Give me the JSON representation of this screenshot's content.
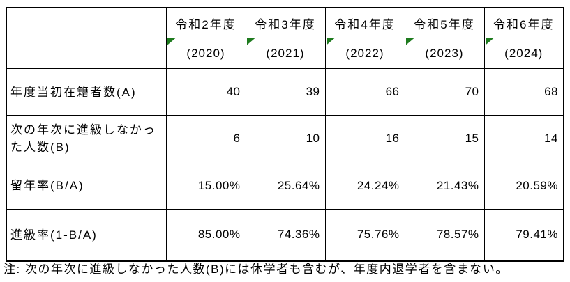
{
  "colors": {
    "error_indicator_green": "#1e7b1e",
    "border": "#000000",
    "text": "#000000",
    "background": "#ffffff"
  },
  "table": {
    "columns": [
      {
        "era": "令和2年度",
        "year": "(2020)"
      },
      {
        "era": "令和3年度",
        "year": "(2021)"
      },
      {
        "era": "令和4年度",
        "year": "(2022)"
      },
      {
        "era": "令和5年度",
        "year": "(2023)"
      },
      {
        "era": "令和6年度",
        "year": "(2024)"
      }
    ],
    "rows": [
      {
        "label": "年度当初在籍者数(A)",
        "values": [
          "40",
          "39",
          "66",
          "70",
          "68"
        ]
      },
      {
        "label": "次の年次に進級しなかった人数(B)",
        "values": [
          "6",
          "10",
          "16",
          "15",
          "14"
        ]
      },
      {
        "label": "留年率(B/A)",
        "values": [
          "15.00%",
          "25.64%",
          "24.24%",
          "21.43%",
          "20.59%"
        ]
      },
      {
        "label": "進級率(1-B/A)",
        "values": [
          "85.00%",
          "74.36%",
          "75.76%",
          "78.57%",
          "79.41%"
        ]
      }
    ]
  },
  "note": "注: 次の年次に進級しなかった人数(B)には休学者も含むが、年度内退学者を含まない。",
  "chart_data": {
    "type": "table",
    "title": "",
    "categories": [
      "令和2年度 (2020)",
      "令和3年度 (2021)",
      "令和4年度 (2022)",
      "令和5年度 (2023)",
      "令和6年度 (2024)"
    ],
    "series": [
      {
        "name": "年度当初在籍者数(A)",
        "values": [
          40,
          39,
          66,
          70,
          68
        ]
      },
      {
        "name": "次の年次に進級しなかった人数(B)",
        "values": [
          6,
          10,
          16,
          15,
          14
        ]
      },
      {
        "name": "留年率(B/A)",
        "values": [
          "15.00%",
          "25.64%",
          "24.24%",
          "21.43%",
          "20.59%"
        ]
      },
      {
        "name": "進級率(1-B/A)",
        "values": [
          "85.00%",
          "74.36%",
          "75.76%",
          "78.57%",
          "79.41%"
        ]
      }
    ],
    "note": "注: 次の年次に進級しなかった人数(B)には休学者も含むが、年度内退学者を含まない。"
  }
}
